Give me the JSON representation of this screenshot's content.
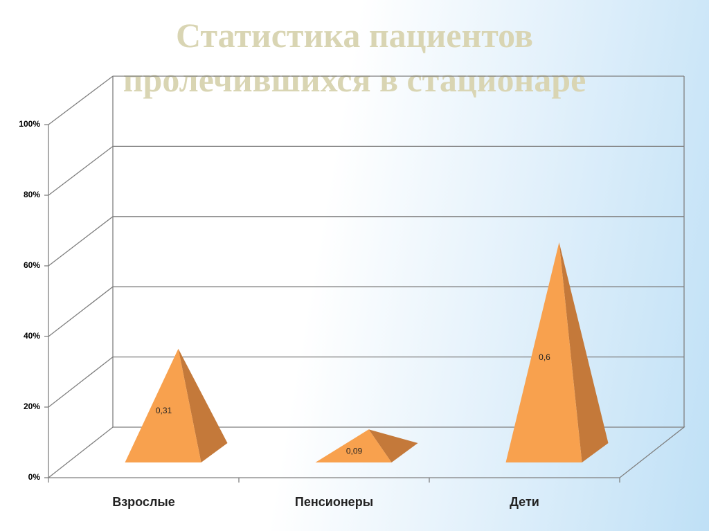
{
  "chart_data": {
    "type": "pyramid3d",
    "title": "Статистика пациентов пролечившихся в стационаре",
    "categories": [
      "Взрослые",
      "Пенсионеры",
      "Дети"
    ],
    "values": [
      0.31,
      0.09,
      0.6
    ],
    "value_labels": [
      "0,31",
      "0,09",
      "0,6"
    ],
    "color": "#f8a14e",
    "ylim": [
      0,
      1
    ],
    "yticks": [
      {
        "value": 0,
        "label": "0%"
      },
      {
        "value": 0.2,
        "label": "20%"
      },
      {
        "value": 0.4,
        "label": "40%"
      },
      {
        "value": 0.6,
        "label": "60%"
      },
      {
        "value": 0.8,
        "label": "80%"
      },
      {
        "value": 1,
        "label": "100%"
      }
    ],
    "grid": true
  }
}
